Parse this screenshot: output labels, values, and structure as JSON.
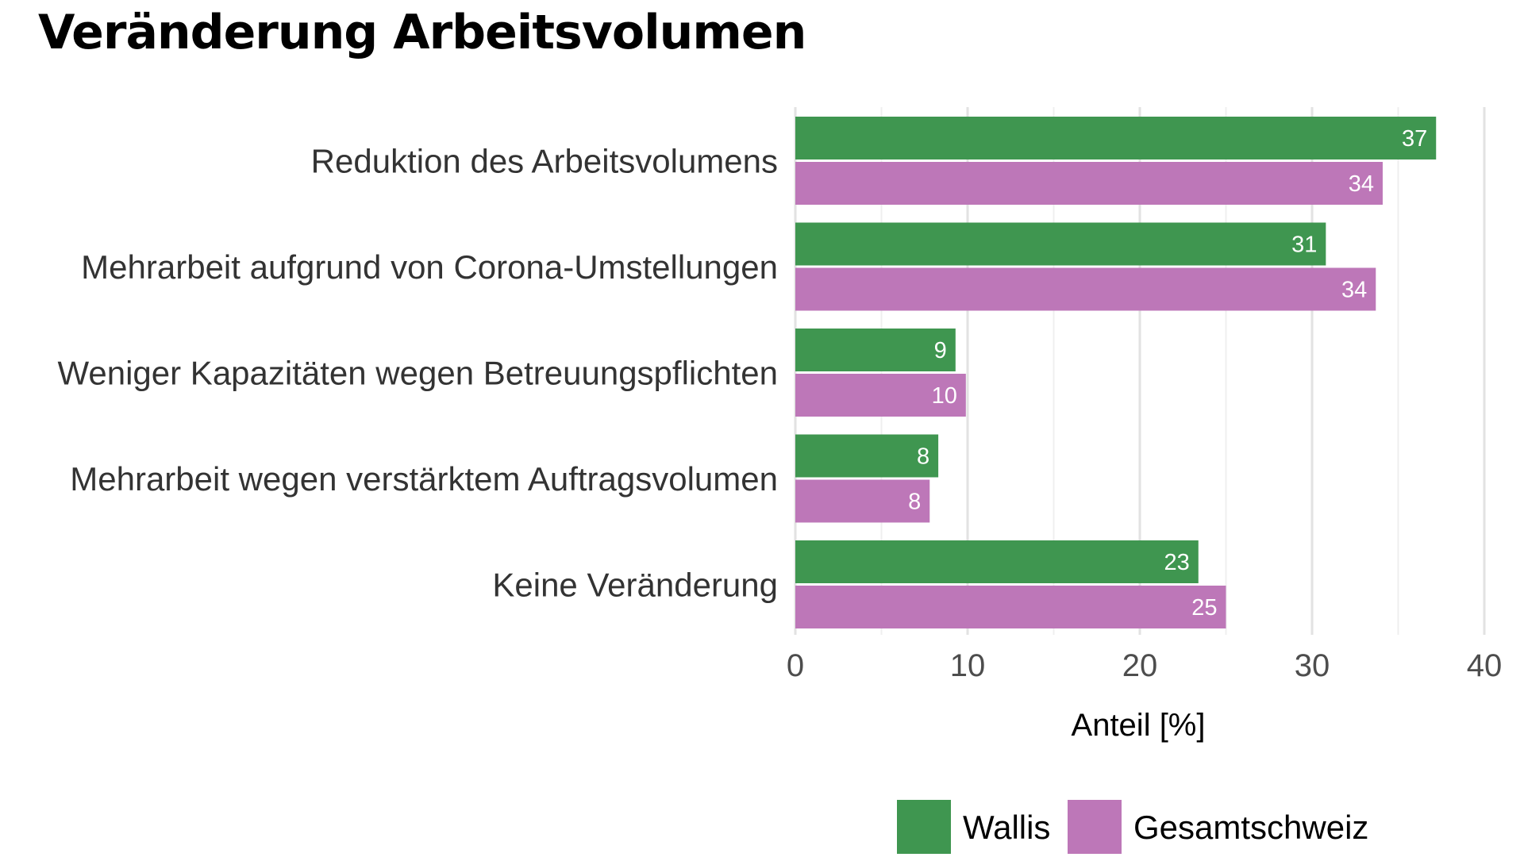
{
  "chart_data": {
    "type": "bar",
    "orientation": "horizontal",
    "title": "Veränderung Arbeitsvolumen",
    "xlabel": "Anteil [%]",
    "ylabel": "",
    "xlim": [
      0,
      40
    ],
    "x_ticks": [
      0,
      10,
      20,
      30,
      40
    ],
    "grid": true,
    "legend_position": "bottom",
    "categories": [
      "Reduktion des Arbeitsvolumens",
      "Mehrarbeit aufgrund von Corona-Umstellungen",
      "Weniger Kapazitäten wegen Betreuungspflichten",
      "Mehrarbeit wegen verstärktem Auftragsvolumen",
      "Keine Veränderung"
    ],
    "series": [
      {
        "name": "Wallis",
        "color": "#3f9650",
        "values": [
          37.2,
          30.8,
          9.3,
          8.3,
          23.4
        ],
        "labels": [
          "37",
          "31",
          "9",
          "8",
          "23"
        ]
      },
      {
        "name": "Gesamtschweiz",
        "color": "#bd77b8",
        "values": [
          34.1,
          33.7,
          9.9,
          7.8,
          25.0
        ],
        "labels": [
          "34",
          "34",
          "10",
          "8",
          "25"
        ]
      }
    ]
  }
}
